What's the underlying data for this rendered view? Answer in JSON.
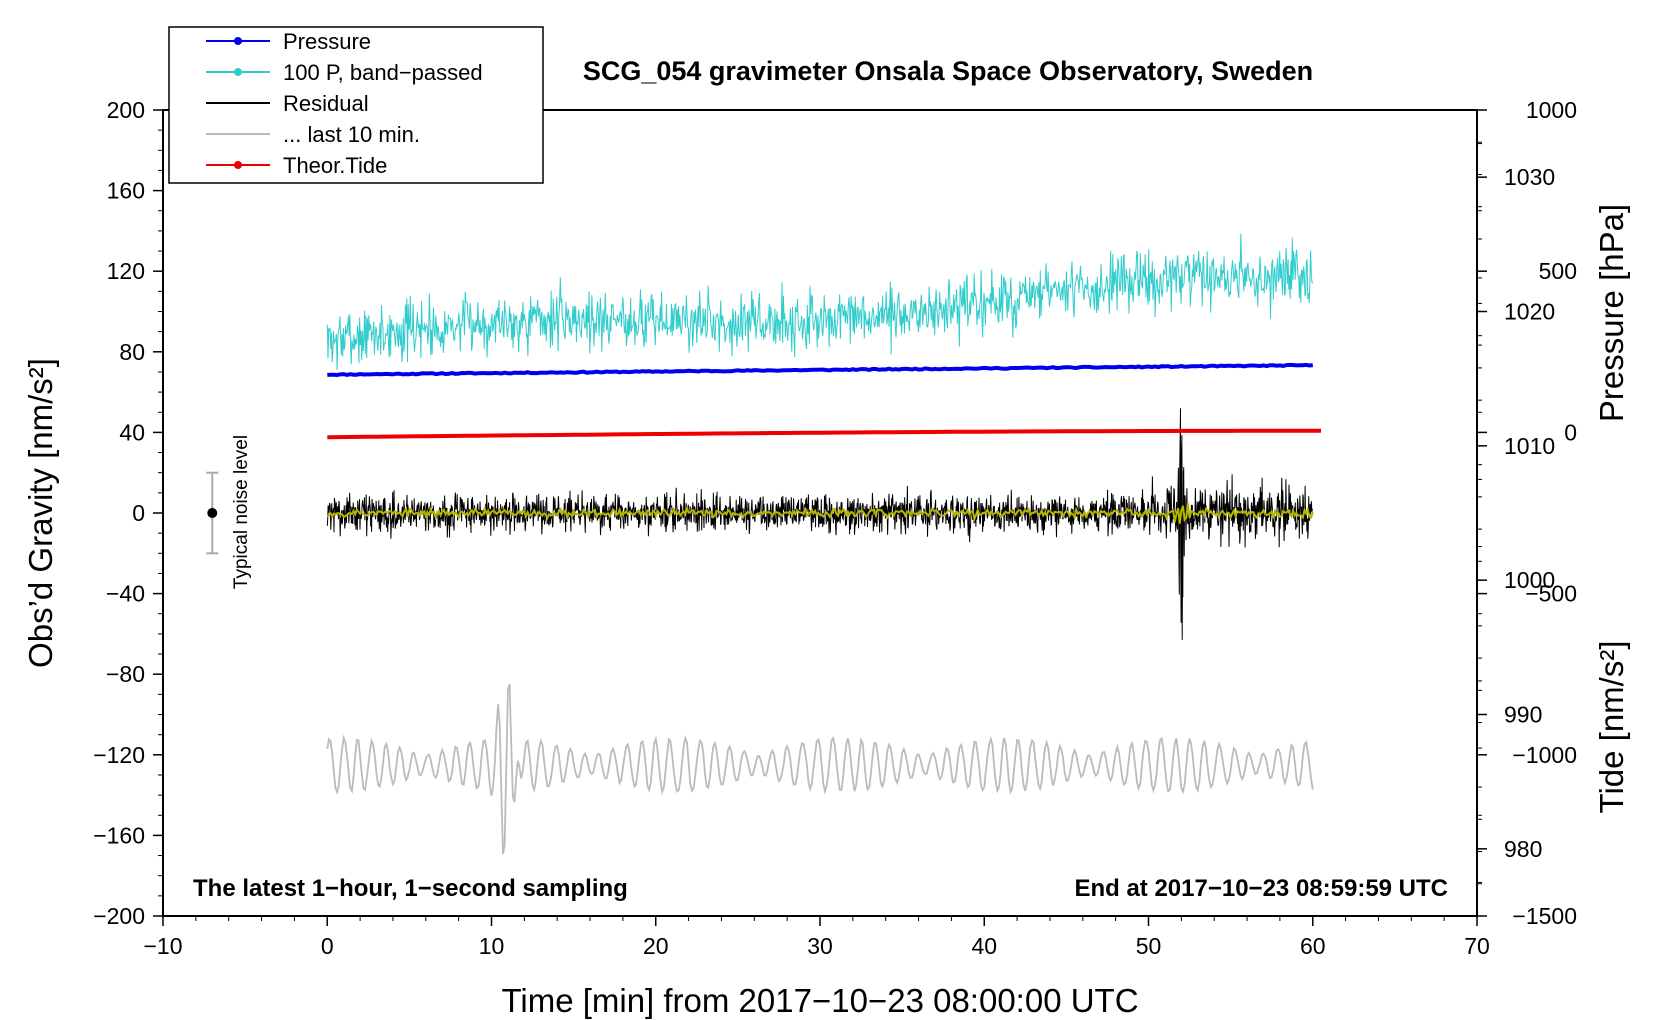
{
  "chart_data": {
    "type": "line",
    "title": "SCG_054 gravimeter Onsala Space Observatory, Sweden",
    "xlabel": "Time [min] from 2017−10−23 08:00:00 UTC",
    "ylabel_left": "Obs’d Gravity [nm/s²]",
    "ylabel_right_upper": "Pressure [hPa]",
    "ylabel_right_lower": "Tide [nm/s²]",
    "xlim": [
      -10,
      70
    ],
    "ylim_left": [
      -200,
      200
    ],
    "ylim_pressure": [
      975,
      1035
    ],
    "ylim_tide": [
      -1500,
      1000
    ],
    "x_ticks": [
      "−10",
      "0",
      "10",
      "20",
      "30",
      "40",
      "50",
      "60",
      "70"
    ],
    "y_ticks_left": [
      "200",
      "160",
      "120",
      "80",
      "40",
      "0",
      "−40",
      "−80",
      "−120",
      "−160",
      "−200"
    ],
    "y_ticks_pressure": [
      "1030",
      "1020",
      "1010",
      "1000",
      "990",
      "980"
    ],
    "y_ticks_tide": [
      "1000",
      "500",
      "0",
      "−500",
      "−1000",
      "−1500"
    ],
    "legend": [
      {
        "name": "Pressure",
        "color": "#0000ee",
        "marker": true
      },
      {
        "name": "100 P, band−passed",
        "color": "#33cccc",
        "marker": true
      },
      {
        "name": "Residual",
        "color": "#000000",
        "marker": false
      },
      {
        "name": "... last 10 min.",
        "color": "#bbbbbb",
        "marker": false
      },
      {
        "name": "Theor.Tide",
        "color": "#ee0000",
        "marker": true
      }
    ],
    "legend_position": "top-left",
    "annotation_left": "The latest 1−hour, 1−second sampling",
    "annotation_right": "End at 2017−10−23 08:59:59 UTC",
    "noise_label": "Typical noise level",
    "noise_level": {
      "x": -7,
      "center": 0,
      "low": -20,
      "high": 20
    },
    "series": [
      {
        "name": "Pressure",
        "axis": "pressure",
        "color": "#0000ee",
        "x_range": [
          0,
          60
        ],
        "start": 1015.3,
        "end": 1016.0
      },
      {
        "name": "100 P, band−passed",
        "axis": "left",
        "color": "#33cccc",
        "x_range": [
          0,
          60
        ],
        "trend_start": 85,
        "trend_end": 115,
        "amplitude": 12
      },
      {
        "name": "Residual",
        "axis": "left",
        "color": "#000000",
        "x_range": [
          0,
          60
        ],
        "mean": 0,
        "amplitude": 10,
        "event": {
          "x": 52,
          "max": 52,
          "min": -63
        }
      },
      {
        "name": "Residual smoothed",
        "axis": "left",
        "color": "#b5b500",
        "x_range": [
          0,
          60
        ],
        "mean": 0,
        "amplitude": 2
      },
      {
        "name": "... last 10 min.",
        "axis": "left",
        "color": "#bbbbbb",
        "x_range": [
          0,
          60
        ],
        "mean": -125,
        "amplitude": 10,
        "peak": {
          "x": 11,
          "max": -70,
          "min": -183
        }
      },
      {
        "name": "Theor.Tide",
        "axis": "tide",
        "color": "#ee0000",
        "x_range": [
          0,
          60.5
        ],
        "start": -15,
        "end": 5
      }
    ]
  }
}
